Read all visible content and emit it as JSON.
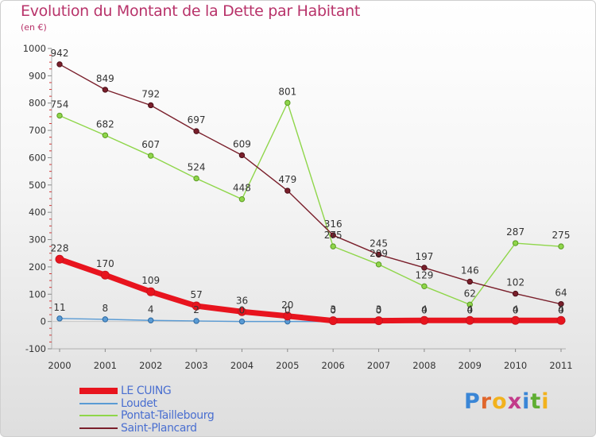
{
  "header": {
    "title": "Evolution du Montant de la Dette par Habitant",
    "subtitle": "(en €)"
  },
  "logo": {
    "text": "Proxiti",
    "letter_colors": [
      "#3a86d6",
      "#e0662c",
      "#f2b21d",
      "#c23b8a",
      "#3a86d6",
      "#5fae32",
      "#f2b21d"
    ]
  },
  "chart_data": {
    "type": "line",
    "x": [
      "2000",
      "2001",
      "2002",
      "2003",
      "2004",
      "2005",
      "2006",
      "2007",
      "2008",
      "2009",
      "2010",
      "2011"
    ],
    "yticks": [
      -100,
      0,
      100,
      200,
      300,
      400,
      500,
      600,
      700,
      800,
      900,
      1000
    ],
    "ylim": [
      -100,
      1000
    ],
    "grid": false,
    "legend": "bottom-left",
    "series": [
      {
        "name": "LE CUING",
        "color": "#e8141e",
        "values": [
          228,
          170,
          109,
          57,
          36,
          20,
          3,
          3,
          4,
          4,
          4,
          4
        ],
        "labels": [
          "228",
          "170",
          "109",
          "57",
          "36",
          "20",
          "3",
          "3",
          "4",
          "4",
          "4",
          "4"
        ]
      },
      {
        "name": "Loudet",
        "color": "#5a9bd4",
        "values": [
          11,
          8,
          4,
          2,
          0,
          0,
          0,
          0,
          0,
          0,
          0,
          0
        ],
        "labels": [
          "11",
          "8",
          "4",
          "2",
          "0",
          "0",
          "0",
          "0",
          "0",
          "0",
          "0",
          "0"
        ]
      },
      {
        "name": "Pontat-Taillebourg",
        "color": "#8fd64a",
        "values": [
          754,
          682,
          607,
          524,
          448,
          801,
          275,
          209,
          129,
          62,
          287,
          275
        ],
        "labels": [
          "754",
          "682",
          "607",
          "524",
          "448",
          "801",
          "275",
          "209",
          "129",
          "62",
          "287",
          "275"
        ]
      },
      {
        "name": "Saint-Plancard",
        "color": "#7a1f2b",
        "values": [
          942,
          849,
          792,
          697,
          609,
          479,
          316,
          245,
          197,
          146,
          102,
          64
        ],
        "labels": [
          "942",
          "849",
          "792",
          "697",
          "609",
          "479",
          "316",
          "245",
          "197",
          "146",
          "102",
          "64"
        ]
      }
    ]
  }
}
